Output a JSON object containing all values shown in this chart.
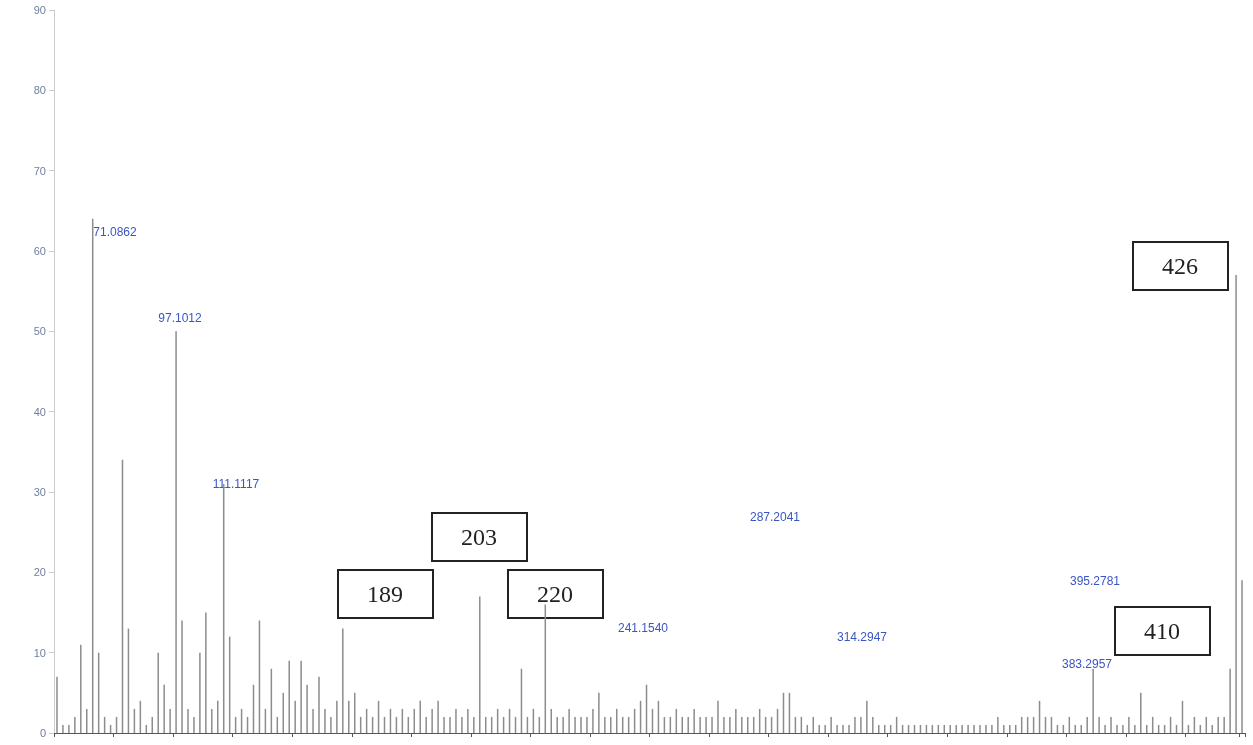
{
  "chart_data": {
    "type": "bar",
    "color": "#8c8c8c",
    "categories": [
      null,
      null,
      null,
      null,
      null,
      null,
      null,
      null,
      null,
      null,
      null,
      null,
      null,
      null,
      null,
      null,
      null,
      null,
      null,
      null,
      null,
      null,
      null,
      null,
      null,
      null,
      null,
      null,
      null,
      null,
      null,
      null,
      null,
      null,
      null,
      null,
      null,
      null,
      null,
      null,
      null,
      null,
      null,
      null,
      null,
      null,
      null,
      null,
      null,
      null,
      null,
      null,
      null,
      null,
      null,
      null,
      null,
      null,
      null,
      null,
      null,
      null,
      null,
      null,
      null,
      null,
      null,
      null,
      null,
      null,
      null,
      null,
      null,
      null,
      null,
      null,
      null,
      null,
      null,
      null,
      null,
      null,
      null,
      null,
      null,
      null,
      null,
      null,
      null,
      null,
      null,
      null,
      null,
      null,
      null,
      null,
      null,
      null,
      null,
      null,
      null,
      null,
      null,
      null,
      null,
      null,
      null,
      null,
      null,
      null,
      null,
      null,
      null,
      null,
      null,
      null,
      null,
      null,
      null,
      null,
      null,
      null,
      null,
      null,
      null,
      null,
      null,
      null,
      null,
      null,
      null,
      null,
      null,
      null,
      null,
      null,
      null,
      null,
      null,
      null,
      null,
      null,
      null,
      null,
      null,
      null,
      null,
      null,
      null,
      null,
      null,
      null,
      null,
      null,
      null,
      null,
      null,
      null,
      null,
      null,
      null,
      null,
      null,
      null,
      null,
      null,
      null,
      null,
      null,
      null,
      null,
      null,
      null,
      null,
      null,
      null,
      null,
      null,
      null,
      null,
      null,
      null,
      null,
      null,
      null,
      null,
      null,
      null,
      null,
      null,
      null,
      null,
      null,
      null,
      null,
      null,
      null,
      null,
      null,
      null
    ],
    "values": [
      7,
      1,
      1,
      2,
      11,
      3,
      64,
      10,
      2,
      1,
      2,
      34,
      13,
      3,
      4,
      1,
      2,
      10,
      6,
      3,
      50,
      14,
      3,
      2,
      10,
      15,
      3,
      4,
      31,
      12,
      2,
      3,
      2,
      6,
      14,
      3,
      8,
      2,
      5,
      9,
      4,
      9,
      6,
      3,
      7,
      3,
      2,
      4,
      13,
      4,
      5,
      2,
      3,
      2,
      4,
      2,
      3,
      2,
      3,
      2,
      3,
      4,
      2,
      3,
      4,
      2,
      2,
      3,
      2,
      3,
      2,
      17,
      2,
      2,
      3,
      2,
      3,
      2,
      8,
      2,
      3,
      2,
      16,
      3,
      2,
      2,
      3,
      2,
      2,
      2,
      3,
      5,
      2,
      2,
      3,
      2,
      2,
      3,
      4,
      6,
      3,
      4,
      2,
      2,
      3,
      2,
      2,
      3,
      2,
      2,
      2,
      4,
      2,
      2,
      3,
      2,
      2,
      2,
      3,
      2,
      2,
      3,
      5,
      5,
      2,
      2,
      1,
      2,
      1,
      1,
      2,
      1,
      1,
      1,
      2,
      2,
      4,
      2,
      1,
      1,
      1,
      2,
      1,
      1,
      1,
      1,
      1,
      1,
      1,
      1,
      1,
      1,
      1,
      1,
      1,
      1,
      1,
      1,
      2,
      1,
      1,
      1,
      2,
      2,
      2,
      4,
      2,
      2,
      1,
      1,
      2,
      1,
      1,
      2,
      8,
      2,
      1,
      2,
      1,
      1,
      2,
      1,
      5,
      1,
      2,
      1,
      1,
      2,
      1,
      4,
      1,
      2,
      1,
      2,
      1,
      2,
      2,
      8,
      57,
      19
    ],
    "ylim": [
      0,
      90
    ],
    "yticks": [
      0,
      10,
      20,
      30,
      40,
      50,
      60,
      70,
      80,
      90
    ],
    "tick_labels": "y",
    "annotations": [
      "71.0862",
      "97.1012",
      "111.1117",
      "241.1540",
      "287.2041",
      "314.2947",
      "383.2957",
      "395.2781",
      "189",
      "203",
      "220",
      "410",
      "426"
    ]
  }
}
